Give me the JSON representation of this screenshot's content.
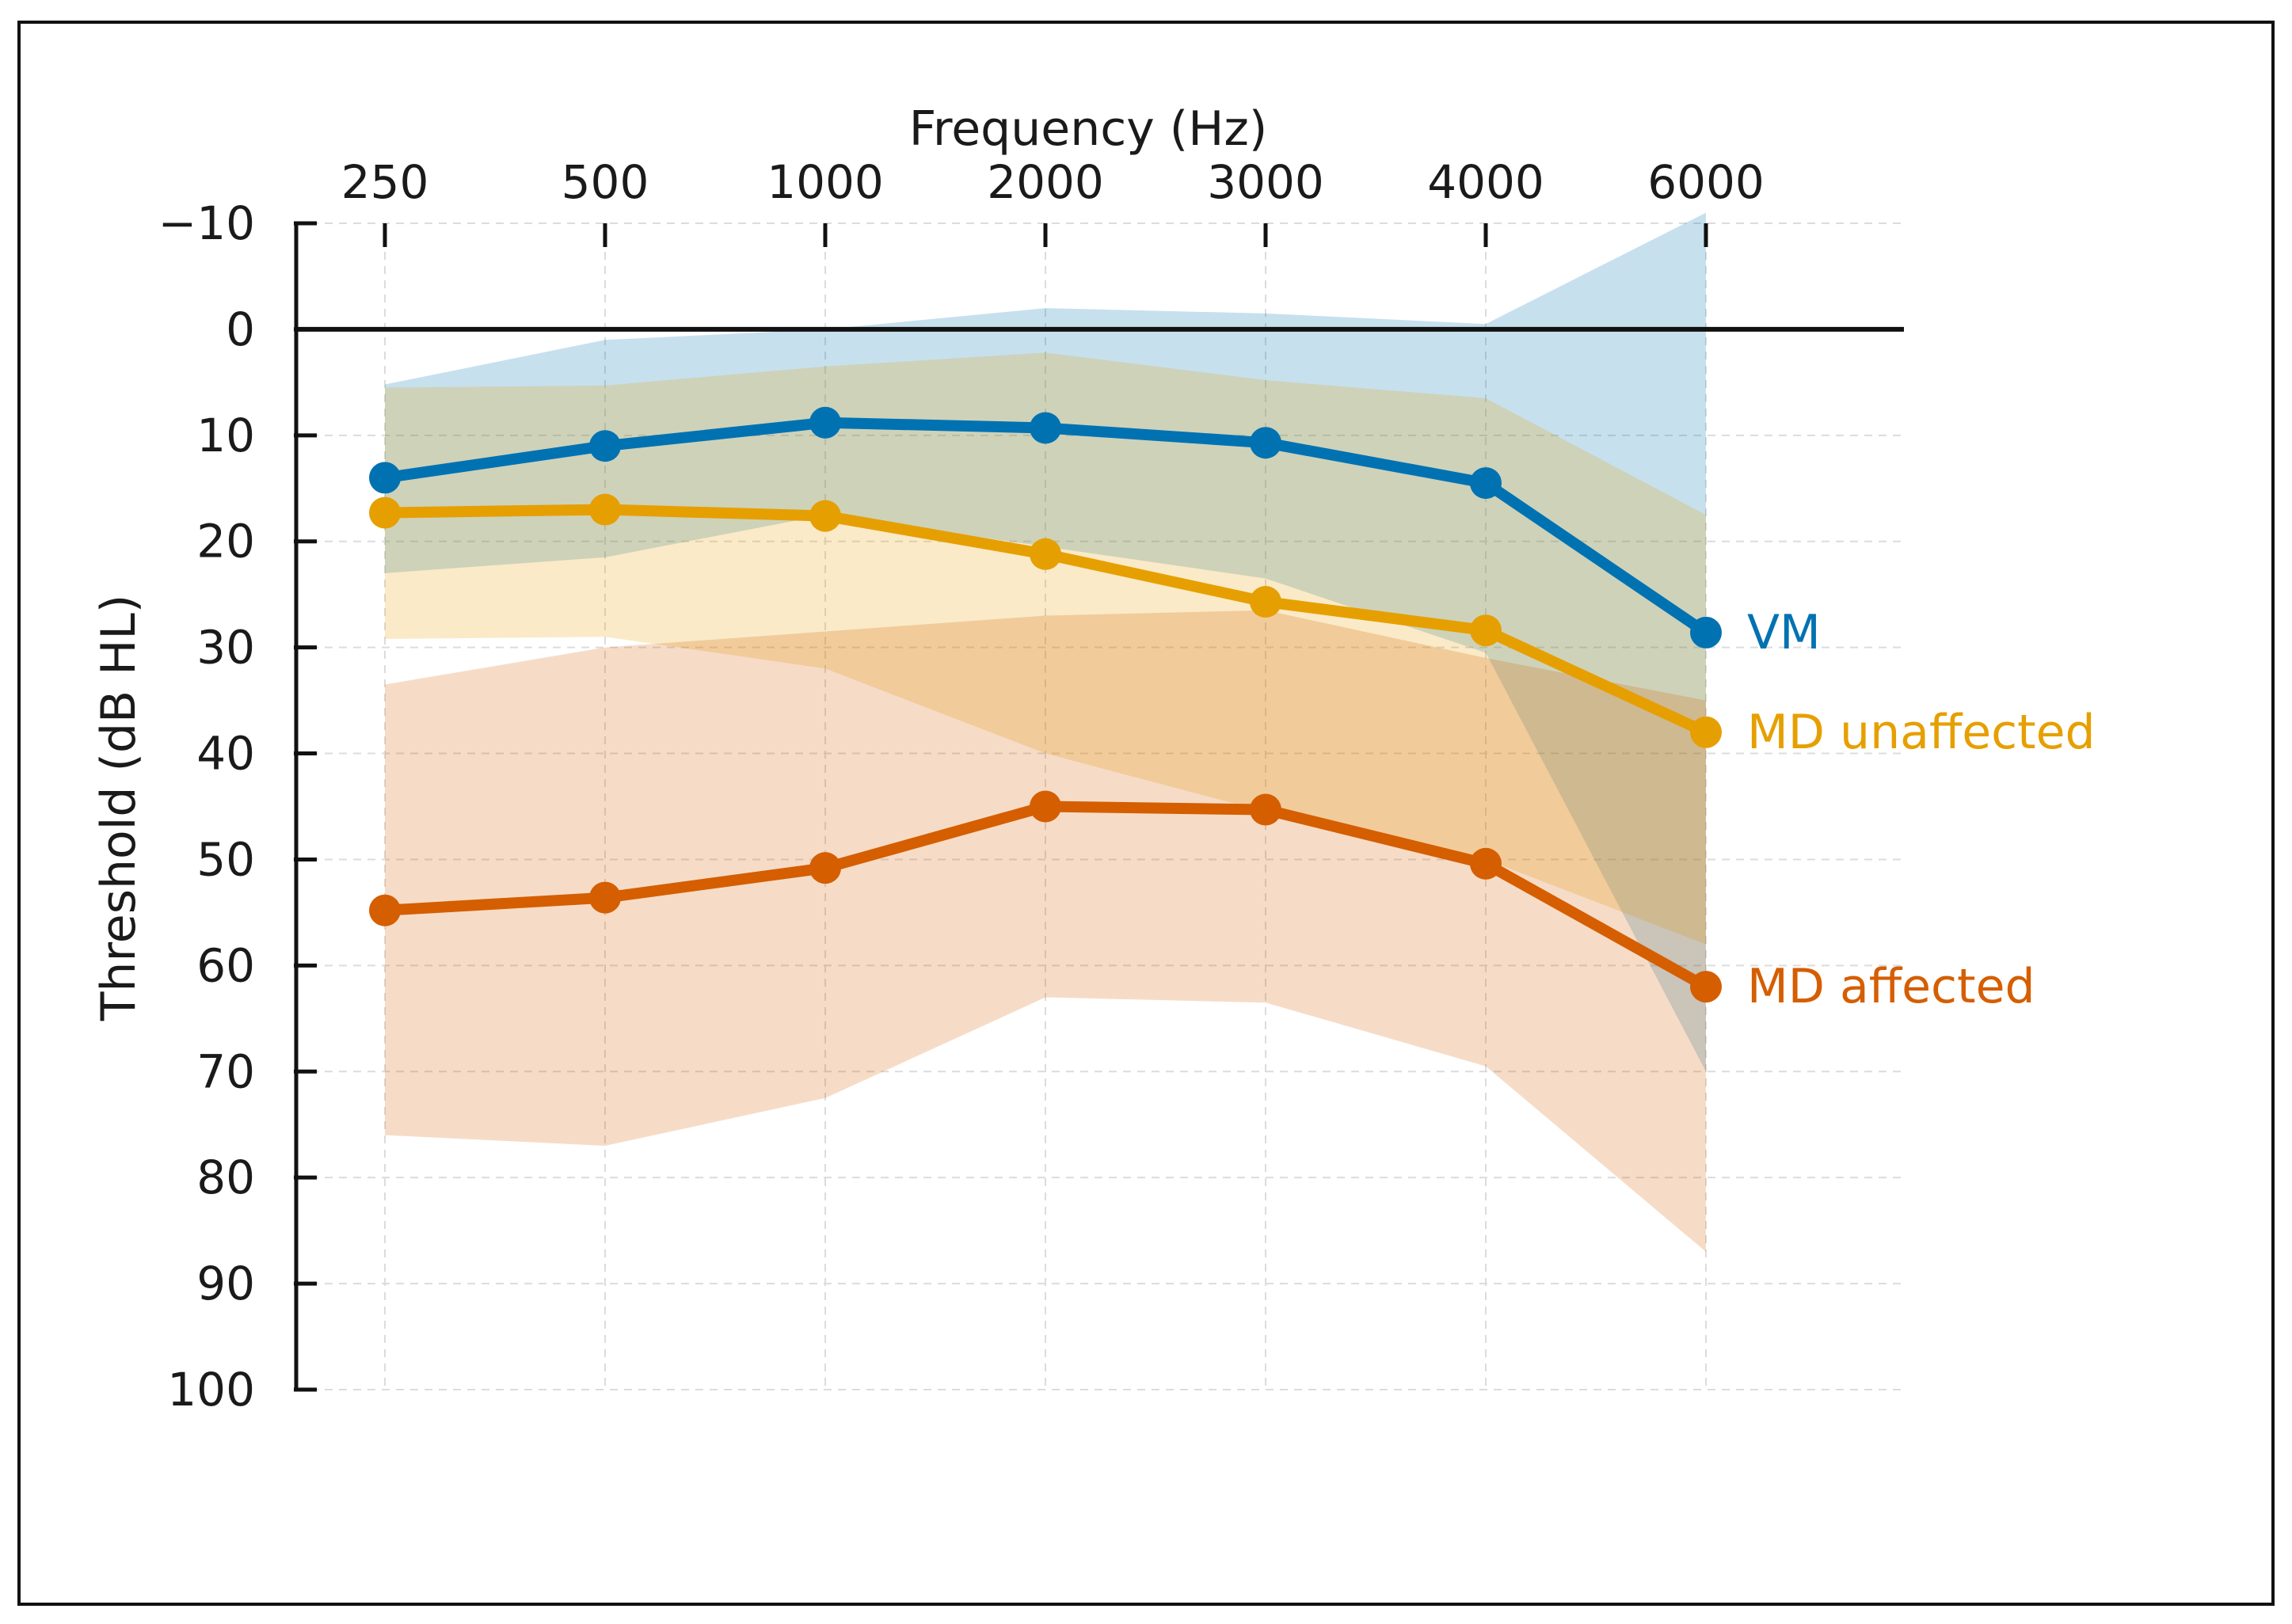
{
  "chart_data": {
    "type": "line",
    "xlabel": "Frequency (Hz)",
    "ylabel": "Threshold (dB HL)",
    "categories": [
      "250",
      "500",
      "1000",
      "2000",
      "3000",
      "4000",
      "6000"
    ],
    "yticks": [
      "−10",
      "0",
      "10",
      "20",
      "30",
      "40",
      "50",
      "60",
      "70",
      "80",
      "90",
      "100"
    ],
    "ylim": [
      -10,
      100
    ],
    "y_inverted": true,
    "reference_line": 0,
    "grid": true,
    "series": [
      {
        "name": "VM",
        "color": "#0072b2",
        "values": [
          14,
          11,
          8.8,
          9.3,
          10.7,
          14.5,
          28.6
        ],
        "band_upper": [
          5.2,
          1,
          0,
          -2,
          -1.5,
          -0.5,
          -11
        ],
        "band_lower": [
          23,
          21.5,
          17.5,
          20.5,
          23.5,
          30.5,
          70
        ]
      },
      {
        "name": "MD unaffected",
        "color": "#e69f00",
        "values": [
          17.3,
          17,
          17.6,
          21.2,
          25.7,
          28.4,
          38
        ],
        "band_upper": [
          5.5,
          5.3,
          3.5,
          2.2,
          4.8,
          6.5,
          17.5
        ],
        "band_lower": [
          29.2,
          29,
          32,
          40,
          45.5,
          50,
          58
        ]
      },
      {
        "name": "MD affected",
        "color": "#d55e00",
        "values": [
          54.8,
          53.6,
          50.8,
          45,
          45.3,
          50.4,
          62
        ],
        "band_upper": [
          33.5,
          30,
          28.5,
          27,
          26.5,
          31,
          35
        ],
        "band_lower": [
          76,
          77,
          72.5,
          63,
          63.5,
          69.5,
          87
        ]
      }
    ]
  }
}
